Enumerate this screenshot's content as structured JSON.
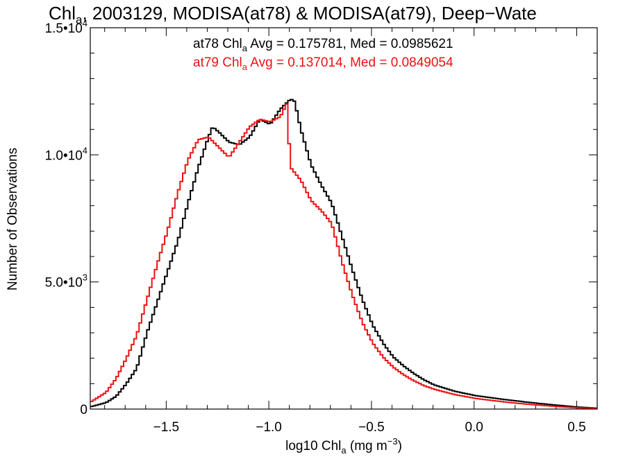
{
  "chart_data": {
    "type": "line",
    "style": "step-histogram",
    "title": {
      "prefix": "Chl",
      "sub": "a",
      "suffix": ", 2003129, MODISA(at78) & MODISA(at79), Deep−Wate"
    },
    "xlabel": {
      "prefix": "log10 Chl",
      "sub": "a",
      "suffix": " (mg m",
      "sup": "−3",
      "end": ")"
    },
    "ylabel": "Number of Observations",
    "xlim": [
      -1.87,
      0.6
    ],
    "ylim": [
      0,
      15000
    ],
    "grid": false,
    "x_ticks": [
      {
        "value": -1.5,
        "label": "−1.5"
      },
      {
        "value": -1.0,
        "label": "−1.0"
      },
      {
        "value": -0.5,
        "label": "−0.5"
      },
      {
        "value": 0.0,
        "label": "0.0"
      },
      {
        "value": 0.5,
        "label": "0.5"
      }
    ],
    "y_ticks": [
      {
        "value": 0,
        "mantissa": "0",
        "exp": ""
      },
      {
        "value": 5000,
        "mantissa": "5.0•10",
        "exp": "3"
      },
      {
        "value": 10000,
        "mantissa": "1.0•10",
        "exp": "4"
      },
      {
        "value": 15000,
        "mantissa": "1.5•10",
        "exp": "4"
      }
    ],
    "annotations": [
      {
        "color": "#000000",
        "pre": "at78 Chl",
        "sub": "a",
        "post": " Avg = 0.175781, Med = 0.0985621"
      },
      {
        "color": "#ee1111",
        "pre": "at79 Chl",
        "sub": "a",
        "post": " Avg = 0.137014, Med = 0.0849054"
      }
    ],
    "series": [
      {
        "color": "#000000",
        "points": [
          [
            -1.87,
            100
          ],
          [
            -1.8,
            250
          ],
          [
            -1.75,
            500
          ],
          [
            -1.7,
            1000
          ],
          [
            -1.65,
            1600
          ],
          [
            -1.6,
            3000
          ],
          [
            -1.55,
            4200
          ],
          [
            -1.5,
            5400
          ],
          [
            -1.45,
            6600
          ],
          [
            -1.4,
            8100
          ],
          [
            -1.35,
            9500
          ],
          [
            -1.3,
            10700
          ],
          [
            -1.28,
            11100
          ],
          [
            -1.25,
            10900
          ],
          [
            -1.2,
            10500
          ],
          [
            -1.15,
            10400
          ],
          [
            -1.1,
            10700
          ],
          [
            -1.05,
            11400
          ],
          [
            -1.0,
            11200
          ],
          [
            -0.95,
            11800
          ],
          [
            -0.9,
            12200
          ],
          [
            -0.88,
            12100
          ],
          [
            -0.85,
            11000
          ],
          [
            -0.8,
            9600
          ],
          [
            -0.75,
            8800
          ],
          [
            -0.7,
            8100
          ],
          [
            -0.65,
            6800
          ],
          [
            -0.6,
            5500
          ],
          [
            -0.55,
            4300
          ],
          [
            -0.5,
            3300
          ],
          [
            -0.45,
            2600
          ],
          [
            -0.4,
            2050
          ],
          [
            -0.35,
            1700
          ],
          [
            -0.3,
            1400
          ],
          [
            -0.25,
            1150
          ],
          [
            -0.2,
            950
          ],
          [
            -0.1,
            700
          ],
          [
            0.0,
            530
          ],
          [
            0.1,
            420
          ],
          [
            0.2,
            320
          ],
          [
            0.3,
            230
          ],
          [
            0.4,
            150
          ],
          [
            0.5,
            80
          ],
          [
            0.6,
            30
          ]
        ]
      },
      {
        "color": "#ee1111",
        "points": [
          [
            -1.87,
            300
          ],
          [
            -1.8,
            650
          ],
          [
            -1.75,
            1200
          ],
          [
            -1.7,
            2000
          ],
          [
            -1.65,
            2900
          ],
          [
            -1.6,
            4300
          ],
          [
            -1.55,
            5700
          ],
          [
            -1.5,
            7000
          ],
          [
            -1.45,
            8500
          ],
          [
            -1.4,
            9800
          ],
          [
            -1.35,
            10600
          ],
          [
            -1.3,
            10700
          ],
          [
            -1.25,
            10300
          ],
          [
            -1.2,
            9900
          ],
          [
            -1.15,
            10500
          ],
          [
            -1.1,
            11100
          ],
          [
            -1.05,
            11400
          ],
          [
            -1.0,
            11300
          ],
          [
            -0.95,
            11500
          ],
          [
            -0.92,
            12000
          ],
          [
            -0.9,
            9500
          ],
          [
            -0.85,
            9000
          ],
          [
            -0.8,
            8200
          ],
          [
            -0.75,
            7800
          ],
          [
            -0.7,
            7300
          ],
          [
            -0.65,
            5800
          ],
          [
            -0.6,
            4500
          ],
          [
            -0.55,
            3400
          ],
          [
            -0.5,
            2600
          ],
          [
            -0.45,
            2050
          ],
          [
            -0.4,
            1650
          ],
          [
            -0.35,
            1350
          ],
          [
            -0.3,
            1120
          ],
          [
            -0.25,
            920
          ],
          [
            -0.2,
            780
          ],
          [
            -0.1,
            570
          ],
          [
            0.0,
            420
          ],
          [
            0.1,
            320
          ],
          [
            0.2,
            230
          ],
          [
            0.3,
            160
          ],
          [
            0.4,
            100
          ],
          [
            0.5,
            50
          ],
          [
            0.6,
            20
          ]
        ]
      }
    ]
  }
}
